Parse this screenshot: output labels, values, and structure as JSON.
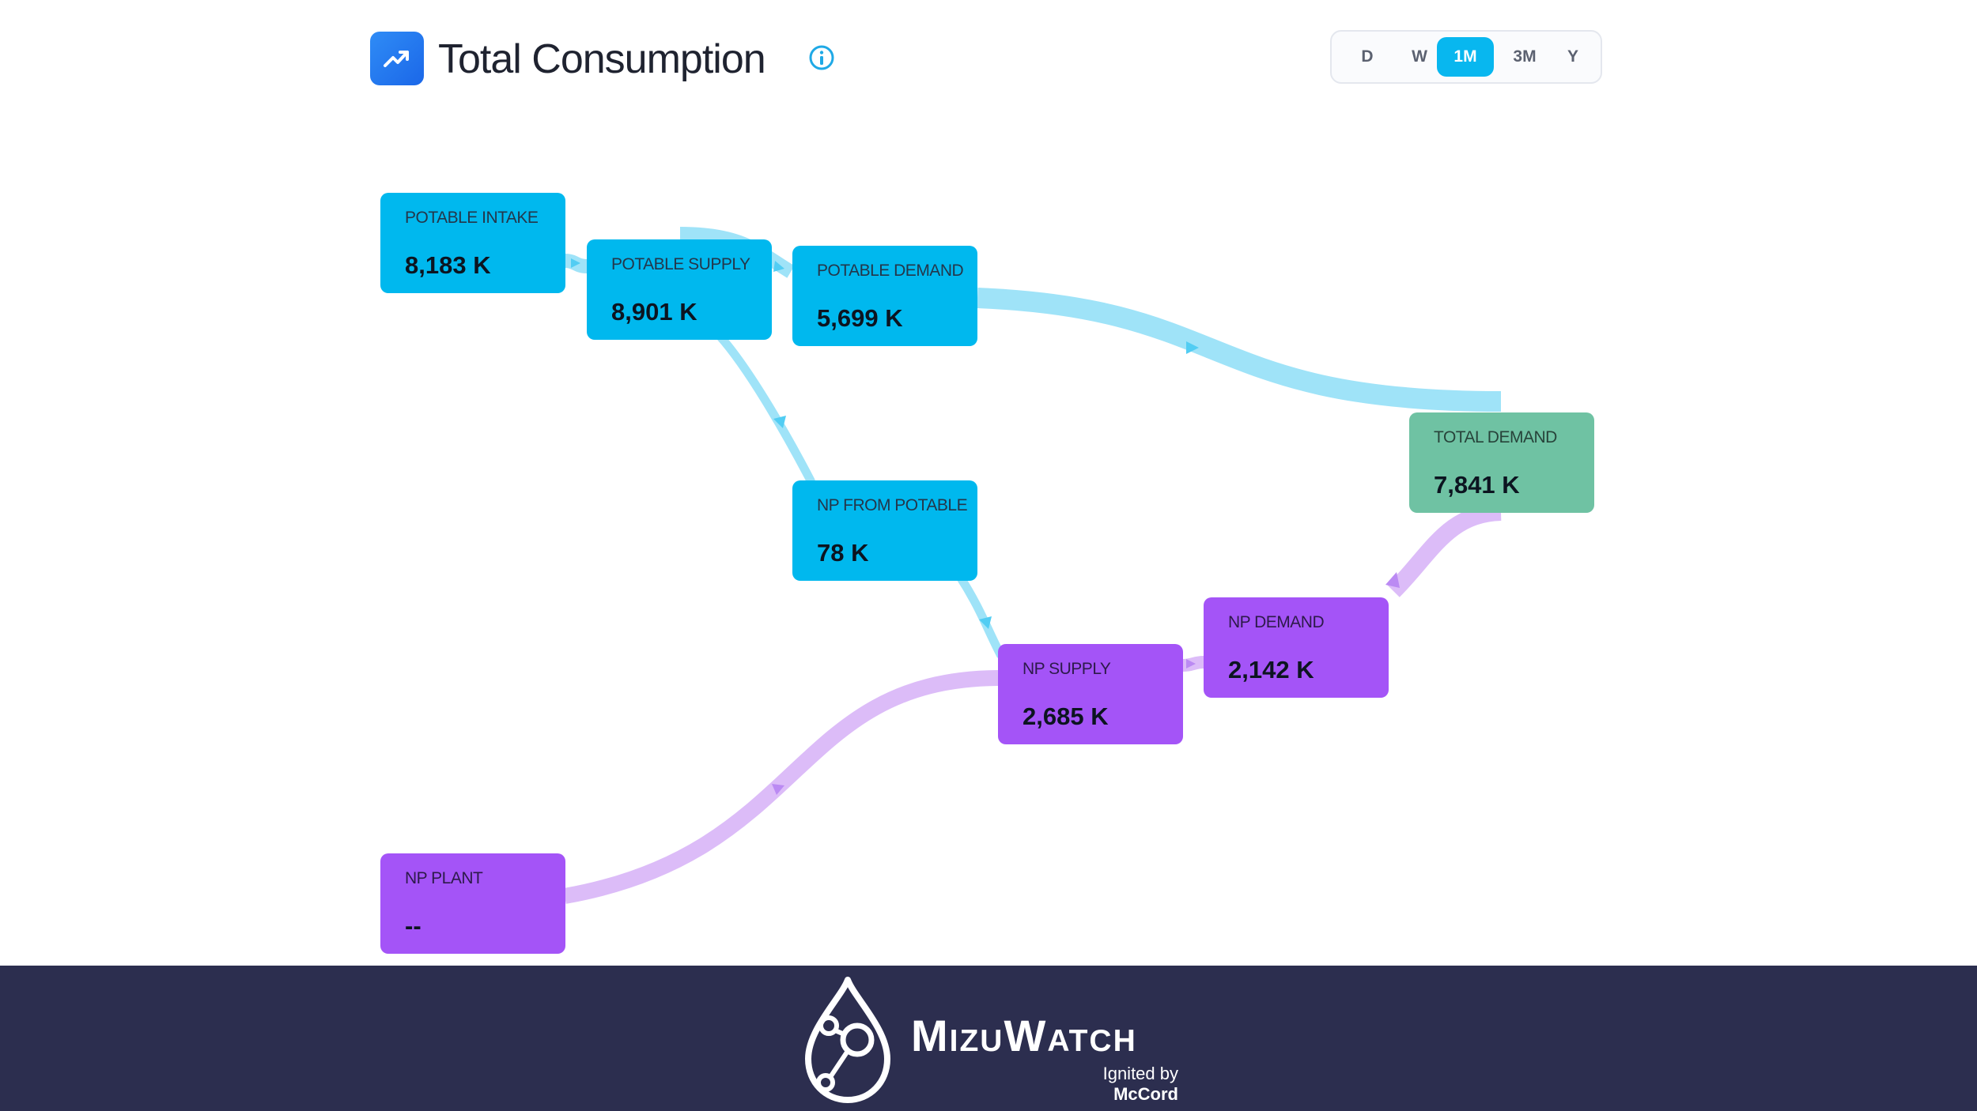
{
  "header": {
    "title": "Total Consumption",
    "title_icon": "trending-up-icon",
    "info_icon": "info-icon",
    "ranges": [
      {
        "label": "D",
        "active": false
      },
      {
        "label": "W",
        "active": false
      },
      {
        "label": "1M",
        "active": true
      },
      {
        "label": "3M",
        "active": false
      },
      {
        "label": "Y",
        "active": false
      }
    ]
  },
  "nodes": {
    "potable_intake": {
      "label": "POTABLE INTAKE",
      "value": "8,183 K"
    },
    "potable_supply": {
      "label": "POTABLE SUPPLY",
      "value": "8,901 K"
    },
    "potable_demand": {
      "label": "POTABLE DEMAND",
      "value": "5,699 K"
    },
    "np_from_potable": {
      "label": "NP FROM POTABLE",
      "value": "78 K"
    },
    "total_demand": {
      "label": "TOTAL DEMAND",
      "value": "7,841 K"
    },
    "np_supply": {
      "label": "NP SUPPLY",
      "value": "2,685 K"
    },
    "np_demand": {
      "label": "NP DEMAND",
      "value": "2,142 K"
    },
    "np_plant": {
      "label": "NP PLANT",
      "value": "--"
    }
  },
  "colors": {
    "potable": "#00b8ee",
    "non_potable": "#a454f7",
    "total": "#6fc2a3",
    "potable_flow": "#9fe3f8",
    "np_flow": "#dcbcf8"
  },
  "footer": {
    "brand_name": "MizuWatch",
    "tagline_prefix": "Ignited by",
    "tagline_brand": "McCord",
    "logo_icon": "water-drop-network-icon"
  }
}
